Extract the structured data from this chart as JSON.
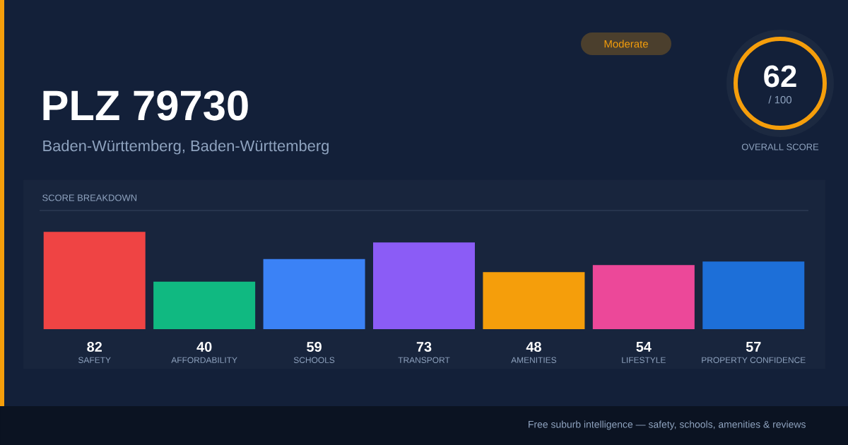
{
  "chart_data": {
    "type": "bar",
    "title": "PLZ 79730",
    "subtitle": "Baden-Württemberg, Baden-Württemberg",
    "categories": [
      "SAFETY",
      "AFFORDABILITY",
      "SCHOOLS",
      "TRANSPORT",
      "AMENITIES",
      "LIFESTYLE",
      "PROPERTY CONFIDENCE"
    ],
    "values": [
      82,
      40,
      59,
      73,
      48,
      54,
      57
    ],
    "colors": [
      "#ef4444",
      "#10b981",
      "#3b82f6",
      "#8b5cf6",
      "#f59e0b",
      "#ec4899",
      "#1d6fd8"
    ],
    "ylim": [
      0,
      100
    ],
    "data_labels": true,
    "tick_labels": "x",
    "annotations": [
      "Moderate",
      "62",
      "/ 100",
      "OVERALL SCORE",
      "SCORE BREAKDOWN",
      "Free suburb intelligence — safety, schools, amenities & reviews"
    ]
  }
}
